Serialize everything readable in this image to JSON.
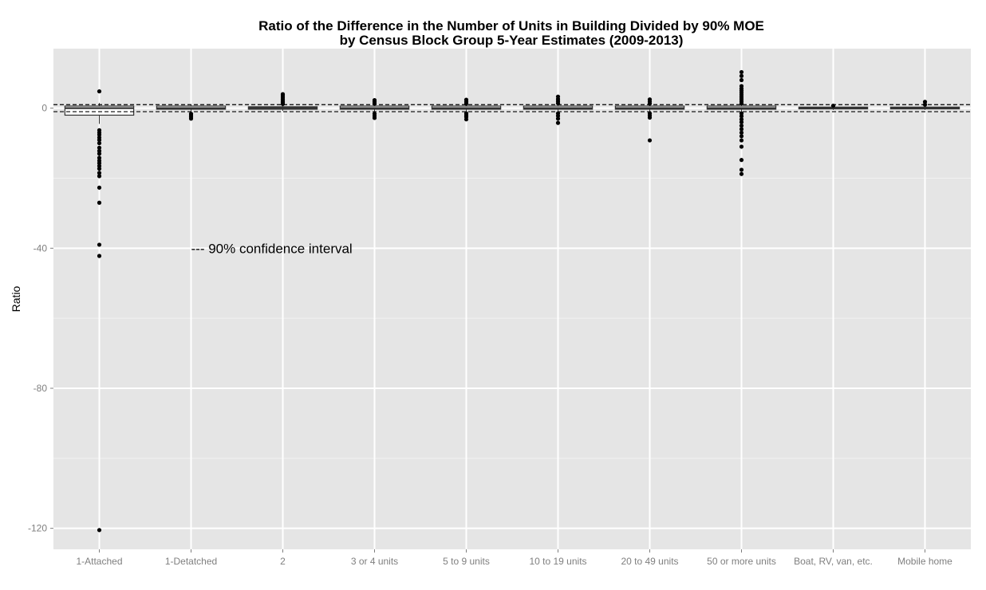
{
  "chart_data": {
    "type": "boxplot",
    "title_line1": "Ratio of the Difference in the Number of Units in Building Divided by 90% MOE",
    "title_line2": "by Census Block Group 5-Year Estimates (2009-2013)",
    "xlabel": "",
    "ylabel": "Ratio",
    "ylim": [
      -126,
      17
    ],
    "yticks": [
      0,
      -40,
      -80,
      -120
    ],
    "ytick_labels": [
      "0",
      "-40",
      "-80",
      "-120"
    ],
    "grid": true,
    "reference_lines": [
      1,
      -1
    ],
    "annotation": "--- 90% confidence interval",
    "annotation_position": {
      "x_category": "1-Detatched",
      "y": -40
    },
    "categories": [
      "1-Attached",
      "1-Detatched",
      "2",
      "3 or 4 units",
      "5 to 9 units",
      "10 to 19 units",
      "20 to 49 units",
      "50 or more units",
      "Boat, RV, van, etc.",
      "Mobile home"
    ],
    "boxes": [
      {
        "q1": -2.0,
        "median": 0.0,
        "q3": 0.6,
        "whisker_low": -4.5,
        "whisker_high": 1.5,
        "outliers": [
          4.8,
          -6.3,
          -7.0,
          -7.6,
          -8.4,
          -9.1,
          -10.0,
          -11.3,
          -12.2,
          -13.0,
          -14.2,
          -15.0,
          -15.7,
          -16.5,
          -17.3,
          -18.5,
          -19.4,
          -22.7,
          -27.0,
          -39.0,
          -42.2,
          -120.5
        ]
      },
      {
        "q1": -0.3,
        "median": 0.0,
        "q3": 0.6,
        "whisker_low": -1.4,
        "whisker_high": 1.0,
        "outliers": [
          -1.6,
          -2.0,
          -2.5,
          -3.0
        ]
      },
      {
        "q1": -0.3,
        "median": 0.0,
        "q3": 0.4,
        "whisker_low": -0.8,
        "whisker_high": 1.0,
        "outliers": [
          1.2,
          1.6,
          2.0,
          2.5,
          3.0,
          3.5,
          4.0
        ]
      },
      {
        "q1": -0.3,
        "median": 0.0,
        "q3": 0.6,
        "whisker_low": -1.0,
        "whisker_high": 1.0,
        "outliers": [
          1.3,
          1.8,
          2.3,
          -1.6,
          -2.2,
          -2.8
        ]
      },
      {
        "q1": -0.3,
        "median": 0.0,
        "q3": 0.6,
        "whisker_low": -1.0,
        "whisker_high": 1.0,
        "outliers": [
          1.3,
          1.8,
          2.4,
          -1.5,
          -2.0,
          -2.5,
          -3.2
        ]
      },
      {
        "q1": -0.3,
        "median": 0.0,
        "q3": 0.6,
        "whisker_low": -1.0,
        "whisker_high": 1.0,
        "outliers": [
          1.4,
          2.0,
          2.6,
          3.3,
          -1.5,
          -2.2,
          -3.0,
          -4.2
        ]
      },
      {
        "q1": -0.3,
        "median": 0.0,
        "q3": 0.6,
        "whisker_low": -1.0,
        "whisker_high": 1.0,
        "outliers": [
          1.3,
          1.9,
          2.5,
          -1.5,
          -2.1,
          -2.7,
          -9.2
        ]
      },
      {
        "q1": -0.3,
        "median": 0.0,
        "q3": 0.6,
        "whisker_low": -1.0,
        "whisker_high": 1.0,
        "outliers": [
          10.3,
          9.2,
          8.0,
          6.3,
          5.6,
          5.0,
          4.4,
          3.8,
          3.2,
          2.6,
          2.0,
          1.4,
          -1.5,
          -2.3,
          -3.2,
          -4.0,
          -5.0,
          -6.0,
          -7.0,
          -8.0,
          -9.2,
          -11.0,
          -14.8,
          -17.6,
          -18.8
        ]
      },
      {
        "q1": -0.2,
        "median": 0.0,
        "q3": 0.3,
        "whisker_low": -0.5,
        "whisker_high": 0.5,
        "outliers": [
          0.7
        ]
      },
      {
        "q1": -0.2,
        "median": 0.0,
        "q3": 0.3,
        "whisker_low": -0.5,
        "whisker_high": 0.6,
        "outliers": [
          1.0,
          1.8
        ]
      }
    ],
    "colors": {
      "panel_bg": "#e5e5e5",
      "grid_major": "#ffffff",
      "grid_minor": "#f2f2f2",
      "box_fill": "#ffffff",
      "box_line": "#333333",
      "point": "#000000",
      "ref_line": "#000000"
    }
  }
}
